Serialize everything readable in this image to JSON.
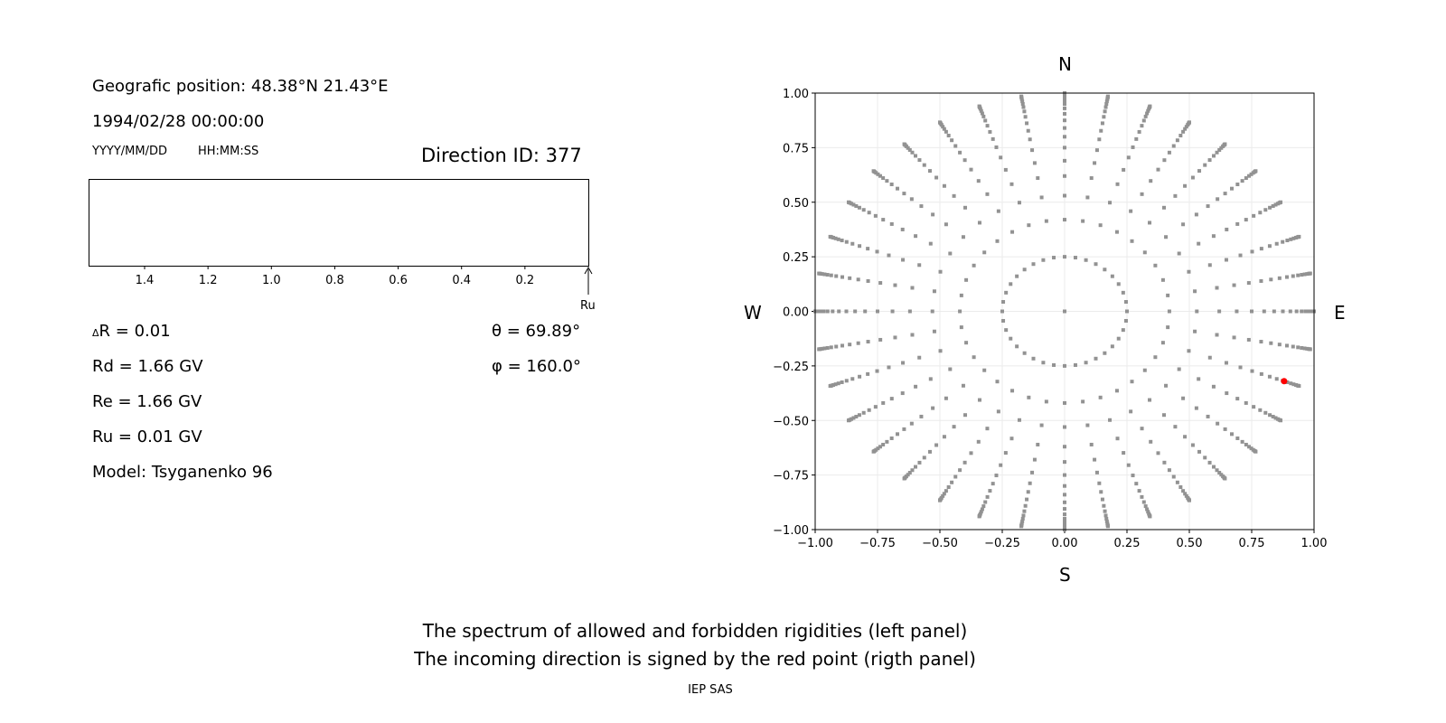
{
  "left": {
    "position": "Geografic position: 48.38°N 21.43°E",
    "datetime": "1994/02/28 00:00:00",
    "date_fmt": "YYYY/MM/DD",
    "time_fmt": "HH:MM:SS",
    "direction": "Direction ID: 377",
    "dR": "R = 0.01",
    "dR_sym": "Δ",
    "Rd": "Rd = 1.66 GV",
    "Re": "Re = 1.66 GV",
    "Ru": "Ru = 0.01 GV",
    "model": "Model: Tsyganenko 96",
    "theta": "θ = 69.89°",
    "phi": "φ = 160.0°",
    "ru_label": "Ru"
  },
  "spectrum_ticks": [
    "1.4",
    "1.2",
    "1.0",
    "0.8",
    "0.6",
    "0.4",
    "0.2"
  ],
  "compass": {
    "n": "N",
    "s": "S",
    "w": "W",
    "e": "E"
  },
  "caption": [
    "The spectrum of allowed and forbidden rigidities (left panel)",
    "The incoming direction is signed by the red point (rigth panel)"
  ],
  "credit": "IEP SAS",
  "chart_data": {
    "type": "scatter",
    "xlim": [
      -1,
      1
    ],
    "ylim": [
      -1,
      1
    ],
    "xticks": [
      "−1.00",
      "−0.75",
      "−0.50",
      "−0.25",
      "0.00",
      "0.25",
      "0.50",
      "0.75",
      "1.00"
    ],
    "yticks": [
      "1.00",
      "0.75",
      "0.50",
      "0.25",
      "0.00",
      "−0.25",
      "−0.50",
      "−0.75",
      "−1.00"
    ],
    "grid": true,
    "ray_angles_step_deg": 10,
    "ray_radii": [
      0.42,
      0.53,
      0.62,
      0.69,
      0.75,
      0.8,
      0.84,
      0.875,
      0.905,
      0.93,
      0.95,
      0.965,
      0.977,
      0.987,
      0.994,
      0.998,
      1.0
    ],
    "inner_ring_radius": 0.25,
    "inner_ring_count": 36,
    "highlight": {
      "x": 0.88,
      "y": -0.32,
      "color": "#ff0000"
    },
    "point_color": "#929292"
  }
}
